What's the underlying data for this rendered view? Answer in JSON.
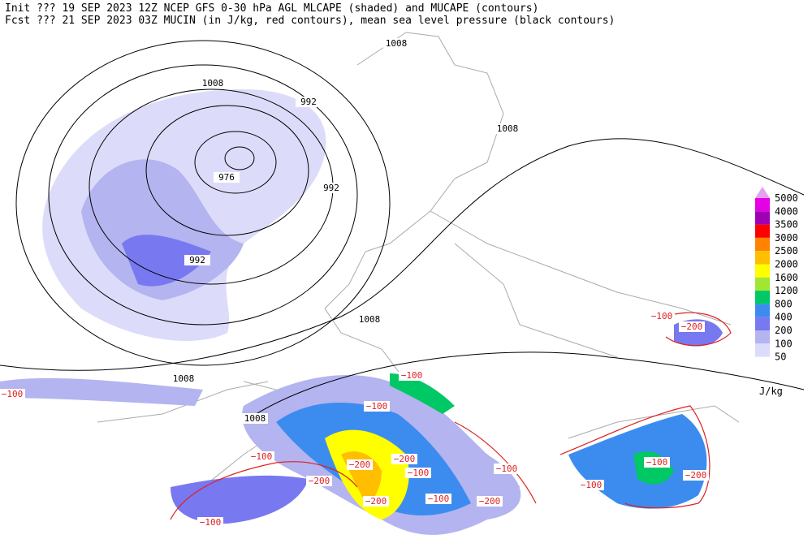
{
  "header": {
    "lines": [
      "Init  ??? 19 SEP 2023 12Z  NCEP GFS 0-30 hPa AGL MLCAPE (shaded) and MUCAPE (contours)",
      "Fcst ??? 21 SEP 2023 03Z  MUCIN (in J/kg, red contours), mean sea level pressure (black contours)"
    ]
  },
  "legend": {
    "labels": [
      "5000",
      "4000",
      "3500",
      "3000",
      "2500",
      "2000",
      "1600",
      "1200",
      "800",
      "400",
      "200",
      "100",
      "50"
    ],
    "colors": [
      "#e6a0f0",
      "#e600e6",
      "#a000b4",
      "#ff0000",
      "#ff8200",
      "#ffbe00",
      "#ffff00",
      "#a0e632",
      "#00c864",
      "#3c8cf0",
      "#7878f0",
      "#b4b4f0",
      "#dcdcfa"
    ],
    "unit": "J/kg"
  },
  "pressure_labels": [
    "1008",
    "1008",
    "992",
    "1008",
    "976",
    "992",
    "992",
    "1008",
    "1008",
    "1008"
  ],
  "mucin_labels": [
    "−100",
    "−100",
    "−200",
    "−200",
    "−200",
    "−200",
    "−100",
    "−100",
    "−100",
    "−200",
    "−100",
    "−100",
    "−200",
    "−100",
    "−100",
    "−100",
    "−200",
    "−100"
  ]
}
